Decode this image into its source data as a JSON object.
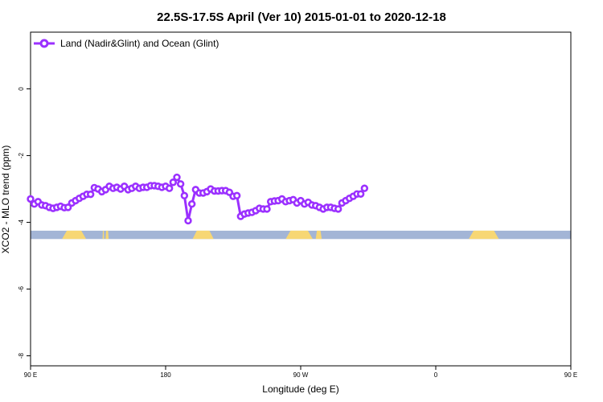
{
  "chart_data": {
    "type": "line",
    "title": "22.5S-17.5S April (Ver 10)   2015-01-01 to 2020-12-18",
    "xlabel": "Longitude (deg E)",
    "ylabel": "XCO2 - MLO trend (ppm)",
    "xlim": [
      90,
      450
    ],
    "ylim": [
      -8.3,
      1.7
    ],
    "x_ticks": [
      {
        "value": 90,
        "label": "90 E"
      },
      {
        "value": 180,
        "label": "180"
      },
      {
        "value": 270,
        "label": "90 W"
      },
      {
        "value": 360,
        "label": "0"
      },
      {
        "value": 450,
        "label": "90 E"
      },
      {
        "value": 540,
        "label": "180"
      }
    ],
    "y_ticks": [
      {
        "value": 0,
        "label": "0"
      },
      {
        "value": -2,
        "label": "-2"
      },
      {
        "value": -4,
        "label": "-4"
      },
      {
        "value": -6,
        "label": "-6"
      },
      {
        "value": -8,
        "label": "-8"
      }
    ],
    "grid": false,
    "legend_position": "top-left",
    "series": [
      {
        "name": "Land (Nadir&Glint) and Ocean (Glint)",
        "color": "#9b30ff",
        "points": [
          [
            90,
            -3.3
          ],
          [
            92.5,
            -3.45
          ],
          [
            95,
            -3.38
          ],
          [
            97.5,
            -3.48
          ],
          [
            100,
            -3.5
          ],
          [
            102.5,
            -3.55
          ],
          [
            105,
            -3.58
          ],
          [
            107.5,
            -3.55
          ],
          [
            110,
            -3.52
          ],
          [
            112.5,
            -3.56
          ],
          [
            115,
            -3.55
          ],
          [
            117.5,
            -3.42
          ],
          [
            120,
            -3.35
          ],
          [
            122.5,
            -3.28
          ],
          [
            125,
            -3.22
          ],
          [
            127.5,
            -3.16
          ],
          [
            130,
            -3.16
          ],
          [
            132.5,
            -2.96
          ],
          [
            135,
            -3.0
          ],
          [
            137.5,
            -3.08
          ],
          [
            140,
            -3.02
          ],
          [
            142.5,
            -2.92
          ],
          [
            145,
            -2.98
          ],
          [
            147.5,
            -2.95
          ],
          [
            150,
            -3.0
          ],
          [
            152.5,
            -2.92
          ],
          [
            155,
            -3.02
          ],
          [
            157.5,
            -2.98
          ],
          [
            160,
            -2.92
          ],
          [
            162.5,
            -2.98
          ],
          [
            165,
            -2.95
          ],
          [
            167.5,
            -2.95
          ],
          [
            170,
            -2.9
          ],
          [
            172.5,
            -2.9
          ],
          [
            175,
            -2.92
          ],
          [
            177.5,
            -2.95
          ],
          [
            180,
            -2.92
          ],
          [
            182.5,
            -2.98
          ],
          [
            185,
            -2.8
          ],
          [
            187.5,
            -2.65
          ],
          [
            190,
            -2.85
          ],
          [
            192.5,
            -3.2
          ],
          [
            195,
            -3.95
          ],
          [
            197.5,
            -3.45
          ],
          [
            200,
            -3.02
          ],
          [
            202.5,
            -3.12
          ],
          [
            205,
            -3.12
          ],
          [
            207.5,
            -3.08
          ],
          [
            210,
            -3.0
          ],
          [
            212.5,
            -3.06
          ],
          [
            215,
            -3.06
          ],
          [
            217.5,
            -3.05
          ],
          [
            220,
            -3.05
          ],
          [
            222.5,
            -3.1
          ],
          [
            225,
            -3.22
          ],
          [
            227.5,
            -3.2
          ],
          [
            230,
            -3.82
          ],
          [
            232.5,
            -3.75
          ],
          [
            235,
            -3.72
          ],
          [
            237.5,
            -3.7
          ],
          [
            240,
            -3.65
          ],
          [
            242.5,
            -3.58
          ],
          [
            245,
            -3.6
          ],
          [
            247.5,
            -3.6
          ],
          [
            250,
            -3.38
          ],
          [
            252.5,
            -3.36
          ],
          [
            255,
            -3.35
          ],
          [
            257.5,
            -3.3
          ],
          [
            260,
            -3.38
          ],
          [
            262.5,
            -3.35
          ],
          [
            265,
            -3.32
          ],
          [
            267.5,
            -3.42
          ],
          [
            270,
            -3.35
          ],
          [
            272.5,
            -3.45
          ],
          [
            275,
            -3.4
          ],
          [
            277.5,
            -3.48
          ],
          [
            280,
            -3.5
          ],
          [
            282.5,
            -3.55
          ],
          [
            285,
            -3.6
          ],
          [
            287.5,
            -3.55
          ],
          [
            290,
            -3.55
          ],
          [
            292.5,
            -3.58
          ],
          [
            295,
            -3.6
          ],
          [
            297.5,
            -3.42
          ],
          [
            300,
            -3.35
          ],
          [
            302.5,
            -3.28
          ],
          [
            305,
            -3.22
          ],
          [
            307.5,
            -3.15
          ],
          [
            310,
            -3.15
          ],
          [
            312.5,
            -2.98
          ]
        ]
      }
    ],
    "land_ocean_band": {
      "y_range": [
        -4.25,
        -4.5
      ],
      "ocean_color": "#a3b5d6",
      "land_color": "#f7d774",
      "land_segments": [
        [
          111,
          127
        ],
        [
          140,
          142
        ],
        [
          138,
          139
        ],
        [
          198,
          212
        ],
        [
          260,
          278
        ],
        [
          280,
          284
        ],
        [
          382,
          402
        ]
      ]
    }
  }
}
